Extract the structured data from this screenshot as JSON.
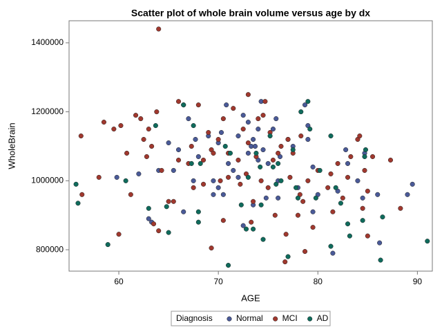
{
  "chart_data": {
    "type": "scatter",
    "title": "Scatter plot of whole brain volume versus age by dx",
    "x_label": "AGE",
    "y_label": "WholeBrain",
    "legend_title": "Diagnosis",
    "legend_position": "bottom",
    "xlim": [
      55,
      91.5
    ],
    "xticks": [
      60,
      70,
      80,
      90
    ],
    "ylim": [
      738000,
      1464000
    ],
    "yticks": [
      800000,
      1000000,
      1200000,
      1400000
    ],
    "series": [
      {
        "name": "Normal",
        "color": "#4a5a98",
        "x": [
          65.5,
          66.5,
          67,
          67.5,
          67.7,
          68,
          69,
          69.5,
          70,
          70.3,
          70.8,
          71,
          71.5,
          72,
          72,
          72.5,
          73,
          73,
          73.3,
          73.5,
          73.7,
          74,
          74,
          74.3,
          74.5,
          75,
          75.5,
          75.8,
          76,
          76,
          77,
          77.5,
          78,
          78.7,
          79,
          79,
          79.5,
          80,
          79.5,
          81.5,
          82,
          82.8,
          83,
          84,
          84.5,
          84.7,
          86,
          86.2,
          89,
          89.5,
          64,
          65,
          66,
          66.5,
          69.5,
          70.5,
          72.5,
          73.5,
          70,
          63,
          62,
          59.8,
          63.3,
          74.8,
          76.2
        ],
        "values": [
          1030000,
          1220000,
          1180000,
          1000000,
          1120000,
          1070000,
          1130000,
          1000000,
          1110000,
          1140000,
          1220000,
          1050000,
          1030000,
          1010000,
          1130000,
          1190000,
          1170000,
          1080000,
          1100000,
          1120000,
          1100000,
          1150000,
          1060000,
          1230000,
          1090000,
          1050000,
          1150000,
          1180000,
          1000000,
          950000,
          1120000,
          1100000,
          980000,
          1220000,
          1160000,
          1120000,
          1040000,
          960000,
          910000,
          790000,
          970000,
          1090000,
          1050000,
          1000000,
          950000,
          1080000,
          960000,
          820000,
          960000,
          990000,
          1030000,
          1110000,
          1090000,
          910000,
          960000,
          960000,
          870000,
          930000,
          980000,
          890000,
          1020000,
          1010000,
          880000,
          950000,
          1070000
        ]
      },
      {
        "name": "MCI",
        "color": "#a0382e",
        "x": [
          56.2,
          56.3,
          58,
          58.5,
          59.5,
          60,
          60.2,
          60.8,
          61.2,
          61.7,
          62.2,
          62.5,
          62.8,
          63,
          63.3,
          63.5,
          63.8,
          64,
          64,
          64.3,
          65,
          65.5,
          66,
          67.3,
          67.5,
          68,
          68.5,
          68.5,
          69,
          69.3,
          69.3,
          69.5,
          70,
          70.5,
          70.5,
          71,
          71,
          71.5,
          72,
          72.2,
          72.5,
          72.8,
          73,
          73,
          73.3,
          73.5,
          73.8,
          74,
          74.3,
          74.5,
          74.7,
          75,
          75.2,
          75.5,
          75.7,
          76,
          76.3,
          76.7,
          76.8,
          77,
          77.2,
          77.5,
          78,
          78.2,
          78.3,
          78.5,
          78.7,
          79,
          79.5,
          80,
          81,
          81.3,
          81.5,
          82,
          82.5,
          83,
          83.3,
          84,
          84.2,
          84.5,
          84.7,
          85,
          85,
          85.5,
          87.3,
          88.3,
          70.2,
          67,
          66
        ],
        "values": [
          1130000,
          960000,
          1010000,
          1170000,
          1150000,
          845000,
          1160000,
          1080000,
          960000,
          1190000,
          1180000,
          1120000,
          1070000,
          1150000,
          1100000,
          875000,
          1200000,
          855000,
          1440000,
          1030000,
          940000,
          940000,
          1060000,
          1100000,
          980000,
          1220000,
          1060000,
          990000,
          1140000,
          1090000,
          805000,
          1080000,
          1120000,
          1180000,
          885000,
          1080000,
          1010000,
          1210000,
          1060000,
          990000,
          1150000,
          1020000,
          1250000,
          1110000,
          880000,
          940000,
          1070000,
          1180000,
          1000000,
          1190000,
          1230000,
          980000,
          1140000,
          1060000,
          900000,
          1080000,
          1100000,
          765000,
          845000,
          1120000,
          1010000,
          1080000,
          900000,
          960000,
          1130000,
          940000,
          795000,
          1000000,
          865000,
          1030000,
          980000,
          1020000,
          910000,
          1050000,
          950000,
          1010000,
          1070000,
          1120000,
          1130000,
          920000,
          1030000,
          840000,
          970000,
          1070000,
          1060000,
          920000,
          1000000,
          1050000,
          1230000
        ]
      },
      {
        "name": "AD",
        "color": "#0f6b5c",
        "x": [
          55.7,
          55.9,
          58.9,
          60.7,
          63,
          63.7,
          64.8,
          65,
          66.5,
          67.3,
          67.5,
          68,
          68,
          68.2,
          70.7,
          71,
          71.2,
          72.3,
          72.8,
          73,
          73.5,
          73.8,
          74.2,
          74.3,
          74.5,
          75.2,
          75.5,
          75.8,
          76.3,
          77,
          77.5,
          77.8,
          78.3,
          79,
          79.2,
          79.8,
          80.2,
          81.3,
          81.3,
          81.8,
          82.3,
          83,
          83.2,
          84.5,
          84.7,
          84.8,
          86.3,
          86.5,
          91,
          76,
          78
        ],
        "values": [
          990000,
          935000,
          815000,
          1000000,
          920000,
          1160000,
          925000,
          850000,
          1220000,
          1050000,
          1160000,
          880000,
          910000,
          1050000,
          1100000,
          755000,
          1080000,
          930000,
          860000,
          1010000,
          860000,
          1080000,
          1040000,
          930000,
          830000,
          1130000,
          1040000,
          990000,
          1000000,
          780000,
          1090000,
          980000,
          1200000,
          1230000,
          1150000,
          950000,
          1030000,
          810000,
          1130000,
          980000,
          935000,
          875000,
          840000,
          885000,
          1070000,
          1090000,
          770000,
          895000,
          825000,
          1050000,
          950000
        ]
      }
    ]
  }
}
